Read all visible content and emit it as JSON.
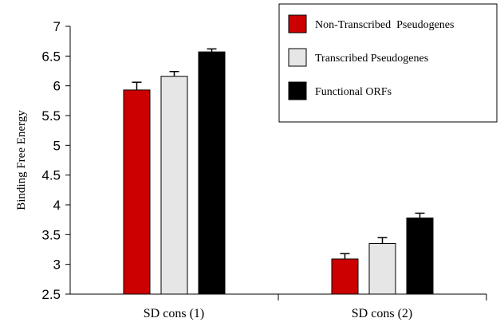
{
  "chart_data": {
    "type": "bar",
    "title": "",
    "xlabel": "",
    "ylabel": "Binding Free Energy",
    "ylim": [
      2.5,
      7
    ],
    "yticks": [
      2.5,
      3,
      3.5,
      4,
      4.5,
      5,
      5.5,
      6,
      6.5,
      7
    ],
    "ytick_labels": [
      "2.5",
      "3",
      "3.5",
      "4",
      "4.5",
      "5",
      "5.5",
      "6",
      "6.5",
      "7"
    ],
    "categories": [
      "SD cons (1)",
      "SD cons (2)"
    ],
    "grid": false,
    "legend_position": "top-right",
    "series": [
      {
        "name": "Non-Transcribed  Pseudogenes",
        "color": "#cc0000",
        "values": [
          5.93,
          3.09
        ],
        "errors": [
          0.13,
          0.09
        ]
      },
      {
        "name": "Transcribed Pseudogenes",
        "color": "#e6e6e6",
        "values": [
          6.16,
          3.35
        ],
        "errors": [
          0.08,
          0.1
        ]
      },
      {
        "name": "Functional ORFs",
        "color": "#000000",
        "values": [
          6.57,
          3.78
        ],
        "errors": [
          0.05,
          0.08
        ]
      }
    ]
  }
}
